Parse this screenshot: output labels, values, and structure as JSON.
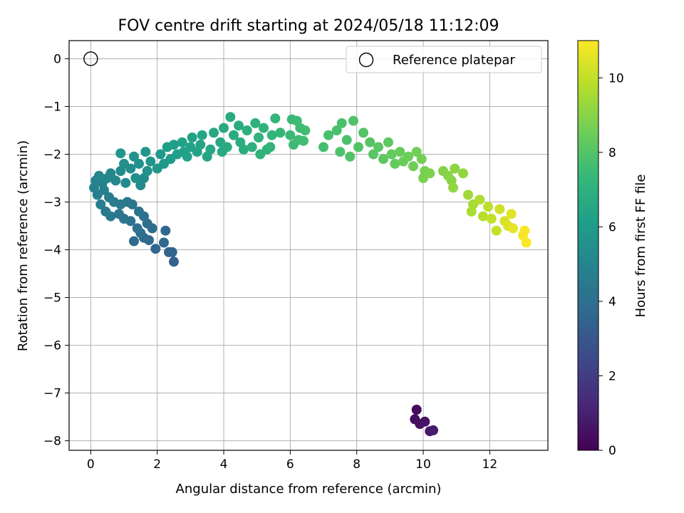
{
  "chart_data": {
    "type": "scatter",
    "title": "FOV centre drift starting at 2024/05/18 11:12:09",
    "xlabel": "Angular distance from reference (arcmin)",
    "ylabel": "Rotation from reference (arcmin)",
    "xlim": [
      -0.65,
      13.75
    ],
    "ylim": [
      -8.2,
      0.38
    ],
    "xticks": [
      0,
      2,
      4,
      6,
      8,
      10,
      12
    ],
    "xtick_labels": [
      "0",
      "2",
      "4",
      "6",
      "8",
      "10",
      "12"
    ],
    "yticks": [
      0,
      -1,
      -2,
      -3,
      -4,
      -5,
      -6,
      -7,
      -8
    ],
    "ytick_labels": [
      "0",
      "−1",
      "−2",
      "−3",
      "−4",
      "−5",
      "−6",
      "−7",
      "−8"
    ],
    "grid": true,
    "legend": {
      "position": "top-right",
      "entries": [
        "Reference platepar"
      ]
    },
    "reference_point": {
      "x": 0,
      "y": 0
    },
    "colorbar": {
      "label": "Hours from first FF file",
      "colormap": "viridis",
      "range": [
        0,
        11
      ],
      "ticks": [
        0,
        2,
        4,
        6,
        8,
        10
      ],
      "tick_labels": [
        "0",
        "2",
        "4",
        "6",
        "8",
        "10"
      ]
    },
    "colormap_stops": [
      "#440154",
      "#482878",
      "#3e4989",
      "#31688e",
      "#26828e",
      "#1f9e89",
      "#35b779",
      "#6ece58",
      "#b5de2b",
      "#fde725"
    ],
    "points": [
      [
        9.8,
        -7.35,
        0.3
      ],
      [
        9.75,
        -7.55,
        0.4
      ],
      [
        9.9,
        -7.65,
        0.5
      ],
      [
        10.05,
        -7.6,
        0.6
      ],
      [
        10.2,
        -7.8,
        0.7
      ],
      [
        10.3,
        -7.78,
        0.8
      ],
      [
        2.5,
        -4.25,
        3.4
      ],
      [
        2.45,
        -4.05,
        3.5
      ],
      [
        2.35,
        -4.05,
        3.55
      ],
      [
        1.95,
        -3.98,
        3.6
      ],
      [
        2.2,
        -3.85,
        3.65
      ],
      [
        2.25,
        -3.6,
        3.7
      ],
      [
        1.75,
        -3.8,
        3.75
      ],
      [
        1.3,
        -3.82,
        3.8
      ],
      [
        1.6,
        -3.75,
        3.85
      ],
      [
        1.85,
        -3.55,
        3.9
      ],
      [
        1.5,
        -3.65,
        3.95
      ],
      [
        1.7,
        -3.45,
        4.0
      ],
      [
        1.4,
        -3.55,
        4.05
      ],
      [
        1.6,
        -3.3,
        4.1
      ],
      [
        1.2,
        -3.4,
        4.15
      ],
      [
        1.45,
        -3.2,
        4.2
      ],
      [
        1.0,
        -3.35,
        4.25
      ],
      [
        1.25,
        -3.05,
        4.3
      ],
      [
        0.85,
        -3.25,
        4.35
      ],
      [
        1.1,
        -3.0,
        4.4
      ],
      [
        0.6,
        -3.3,
        4.45
      ],
      [
        0.9,
        -3.05,
        4.5
      ],
      [
        0.45,
        -3.2,
        4.55
      ],
      [
        0.7,
        -3.0,
        4.6
      ],
      [
        0.3,
        -3.05,
        4.65
      ],
      [
        0.55,
        -2.9,
        4.7
      ],
      [
        0.2,
        -2.85,
        4.75
      ],
      [
        0.4,
        -2.75,
        4.8
      ],
      [
        0.1,
        -2.7,
        4.85
      ],
      [
        0.35,
        -2.6,
        4.9
      ],
      [
        0.15,
        -2.55,
        4.95
      ],
      [
        0.5,
        -2.5,
        5.0
      ],
      [
        0.25,
        -2.45,
        5.05
      ],
      [
        0.6,
        -2.4,
        5.1
      ],
      [
        0.75,
        -2.55,
        5.15
      ],
      [
        0.9,
        -2.35,
        5.2
      ],
      [
        1.05,
        -2.6,
        5.25
      ],
      [
        1.5,
        -2.65,
        5.3
      ],
      [
        1.6,
        -2.5,
        5.35
      ],
      [
        1.2,
        -2.3,
        5.4
      ],
      [
        1.35,
        -2.5,
        5.45
      ],
      [
        1.0,
        -2.2,
        5.5
      ],
      [
        1.45,
        -2.2,
        5.55
      ],
      [
        1.7,
        -2.35,
        5.6
      ],
      [
        1.3,
        -2.05,
        5.65
      ],
      [
        1.8,
        -2.15,
        5.7
      ],
      [
        0.9,
        -1.98,
        5.75
      ],
      [
        1.65,
        -1.95,
        5.8
      ],
      [
        2.0,
        -2.3,
        5.85
      ],
      [
        2.2,
        -2.2,
        5.9
      ],
      [
        2.1,
        -2.0,
        5.95
      ],
      [
        2.4,
        -2.1,
        6.0
      ],
      [
        2.3,
        -1.85,
        6.05
      ],
      [
        2.6,
        -2.0,
        6.1
      ],
      [
        2.5,
        -1.8,
        6.15
      ],
      [
        2.8,
        -1.95,
        6.2
      ],
      [
        2.75,
        -1.75,
        6.25
      ],
      [
        3.0,
        -1.85,
        6.3
      ],
      [
        3.05,
        -1.65,
        6.35
      ],
      [
        3.3,
        -1.8,
        6.4
      ],
      [
        3.35,
        -1.6,
        6.45
      ],
      [
        3.6,
        -1.9,
        6.5
      ],
      [
        3.7,
        -1.55,
        6.55
      ],
      [
        3.9,
        -1.75,
        6.6
      ],
      [
        4.0,
        -1.45,
        6.65
      ],
      [
        4.1,
        -1.85,
        6.7
      ],
      [
        4.3,
        -1.6,
        6.75
      ],
      [
        4.45,
        -1.4,
        6.8
      ],
      [
        4.5,
        -1.75,
        6.85
      ],
      [
        4.7,
        -1.5,
        6.9
      ],
      [
        4.85,
        -1.85,
        6.95
      ],
      [
        4.95,
        -1.35,
        7.0
      ],
      [
        5.05,
        -1.65,
        7.05
      ],
      [
        5.2,
        -1.45,
        7.1
      ],
      [
        5.3,
        -1.9,
        7.15
      ],
      [
        5.45,
        -1.6,
        7.2
      ],
      [
        5.55,
        -1.25,
        7.25
      ],
      [
        5.7,
        -1.55,
        7.3
      ],
      [
        4.2,
        -1.22,
        6.7
      ],
      [
        3.5,
        -2.05,
        6.45
      ],
      [
        3.2,
        -1.95,
        6.35
      ],
      [
        2.9,
        -2.05,
        6.25
      ],
      [
        5.4,
        -1.85,
        7.2
      ],
      [
        3.95,
        -1.95,
        6.6
      ],
      [
        4.6,
        -1.9,
        6.85
      ],
      [
        5.1,
        -2.0,
        7.1
      ],
      [
        6.05,
        -1.27,
        7.45
      ],
      [
        6.2,
        -1.3,
        7.5
      ],
      [
        6.0,
        -1.6,
        7.45
      ],
      [
        6.3,
        -1.45,
        7.55
      ],
      [
        6.25,
        -1.7,
        7.55
      ],
      [
        6.45,
        -1.5,
        7.6
      ],
      [
        6.4,
        -1.72,
        7.6
      ],
      [
        6.1,
        -1.8,
        7.5
      ],
      [
        7.0,
        -1.85,
        7.7
      ],
      [
        7.15,
        -1.6,
        7.75
      ],
      [
        7.4,
        -1.5,
        7.8
      ],
      [
        7.55,
        -1.35,
        7.8
      ],
      [
        7.7,
        -1.7,
        7.85
      ],
      [
        7.9,
        -1.3,
        7.9
      ],
      [
        7.5,
        -1.95,
        7.85
      ],
      [
        7.8,
        -2.05,
        7.9
      ],
      [
        8.05,
        -1.85,
        7.95
      ],
      [
        8.2,
        -1.55,
        8.0
      ],
      [
        8.4,
        -1.75,
        8.05
      ],
      [
        8.5,
        -2.0,
        8.1
      ],
      [
        8.65,
        -1.85,
        8.15
      ],
      [
        8.8,
        -2.1,
        8.2
      ],
      [
        8.95,
        -1.75,
        8.25
      ],
      [
        9.05,
        -2.0,
        8.3
      ],
      [
        9.15,
        -2.2,
        8.35
      ],
      [
        9.3,
        -1.95,
        8.4
      ],
      [
        9.4,
        -2.15,
        8.45
      ],
      [
        9.55,
        -2.05,
        8.5
      ],
      [
        9.7,
        -2.25,
        8.55
      ],
      [
        9.8,
        -1.95,
        8.6
      ],
      [
        9.95,
        -2.1,
        8.65
      ],
      [
        10.05,
        -2.35,
        8.7
      ],
      [
        10.0,
        -2.5,
        8.75
      ],
      [
        10.2,
        -2.4,
        8.8
      ],
      [
        10.6,
        -2.35,
        8.9
      ],
      [
        10.75,
        -2.45,
        9.0
      ],
      [
        10.85,
        -2.55,
        9.05
      ],
      [
        10.95,
        -2.3,
        9.1
      ],
      [
        11.2,
        -2.4,
        9.2
      ],
      [
        10.9,
        -2.7,
        9.15
      ],
      [
        11.35,
        -2.85,
        9.4
      ],
      [
        11.5,
        -3.05,
        9.55
      ],
      [
        11.45,
        -3.2,
        9.6
      ],
      [
        11.7,
        -2.95,
        9.7
      ],
      [
        11.8,
        -3.3,
        9.8
      ],
      [
        11.95,
        -3.1,
        9.9
      ],
      [
        12.05,
        -3.35,
        10.0
      ],
      [
        12.2,
        -3.6,
        10.1
      ],
      [
        12.3,
        -3.15,
        10.2
      ],
      [
        12.45,
        -3.4,
        10.3
      ],
      [
        12.55,
        -3.5,
        10.4
      ],
      [
        12.65,
        -3.25,
        10.5
      ],
      [
        12.7,
        -3.55,
        10.6
      ],
      [
        13.0,
        -3.7,
        10.85
      ],
      [
        13.05,
        -3.6,
        10.9
      ],
      [
        13.1,
        -3.85,
        10.95
      ]
    ]
  }
}
